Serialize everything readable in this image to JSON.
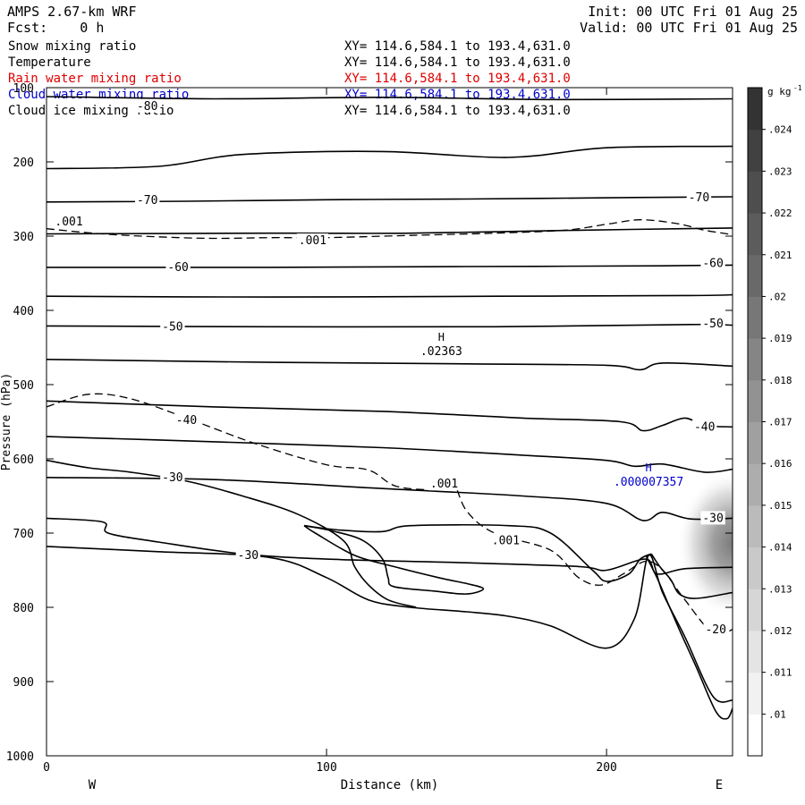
{
  "header": {
    "model": "AMPS 2.67-km WRF",
    "fcst_label": "Fcst:",
    "fcst_value": "0 h",
    "init": "Init: 00 UTC Fri 01 Aug 25",
    "valid": "Valid: 00 UTC Fri 01 Aug 25"
  },
  "fields": [
    {
      "name": "Snow mixing ratio",
      "xy": "XY= 114.6,584.1 to 193.4,631.0",
      "color": "#000000"
    },
    {
      "name": "Temperature",
      "xy": "XY= 114.6,584.1 to 193.4,631.0",
      "color": "#000000"
    },
    {
      "name": "Rain water mixing ratio",
      "xy": "XY= 114.6,584.1 to 193.4,631.0",
      "color": "#e00000"
    },
    {
      "name": "Cloud water mixing ratio",
      "xy": "XY= 114.6,584.1 to 193.4,631.0",
      "color": "#0000cc"
    },
    {
      "name": "Cloud ice mixing ratio",
      "xy": "XY= 114.6,584.1 to 193.4,631.0",
      "color": "#000000"
    }
  ],
  "chart_data": {
    "type": "contour cross-section",
    "xlabel": "Distance (km)",
    "ylabel": "Pressure (hPa)",
    "xlim": [
      0,
      245
    ],
    "ylim": [
      100,
      1000
    ],
    "y_inverted": true,
    "x_ticks": [
      0,
      100,
      200
    ],
    "y_ticks": [
      100,
      200,
      300,
      400,
      500,
      600,
      700,
      800,
      900,
      1000
    ],
    "x_end_labels": {
      "left": "W",
      "right": "E"
    },
    "colorbar": {
      "unit": "g kg",
      "unit_exp": "-1",
      "levels": [
        ".01",
        ".011",
        ".012",
        ".013",
        ".014",
        ".015",
        ".016",
        ".017",
        ".018",
        ".019",
        ".02",
        ".021",
        ".022",
        ".023",
        ".024"
      ]
    },
    "temperature_labels": [
      {
        "text": "-80",
        "x": 36,
        "p": 125
      },
      {
        "text": "-70",
        "x": 36,
        "p": 252
      },
      {
        "text": "-70",
        "x": 233,
        "p": 248
      },
      {
        "text": "-60",
        "x": 47,
        "p": 342
      },
      {
        "text": "-60",
        "x": 238,
        "p": 337
      },
      {
        "text": "-50",
        "x": 45,
        "p": 422
      },
      {
        "text": "-50",
        "x": 238,
        "p": 418
      },
      {
        "text": "-40",
        "x": 50,
        "p": 548
      },
      {
        "text": "-40",
        "x": 235,
        "p": 557
      },
      {
        "text": "-30",
        "x": 45,
        "p": 625
      },
      {
        "text": "-30",
        "x": 72,
        "p": 730
      },
      {
        "text": "-30",
        "x": 238,
        "p": 680
      },
      {
        "text": "-20",
        "x": 239,
        "p": 830
      }
    ],
    "snow_labels": [
      {
        "text": ".001",
        "x": 8,
        "p": 281
      },
      {
        "text": ".001",
        "x": 95,
        "p": 306
      },
      {
        "text": ".001",
        "x": 142,
        "p": 634
      },
      {
        "text": ".001",
        "x": 164,
        "p": 710
      }
    ],
    "maxima": [
      {
        "mark": "H",
        "value": ".02363",
        "x": 141,
        "p": 458,
        "color": "#000000"
      },
      {
        "mark": "H",
        "value": ".000007357",
        "x": 215,
        "p": 634,
        "color": "#0000cc"
      }
    ],
    "temperature_contours": [
      [
        [
          0,
          112
        ],
        [
          60,
          115
        ],
        [
          120,
          113
        ],
        [
          180,
          116
        ],
        [
          245,
          115
        ]
      ],
      [
        [
          0,
          209
        ],
        [
          40,
          206
        ],
        [
          70,
          190
        ],
        [
          120,
          186
        ],
        [
          165,
          194
        ],
        [
          200,
          181
        ],
        [
          245,
          179
        ]
      ],
      [
        [
          0,
          254
        ],
        [
          50,
          253
        ],
        [
          100,
          251
        ],
        [
          150,
          250
        ],
        [
          210,
          248
        ],
        [
          245,
          247
        ]
      ],
      [
        [
          0,
          297
        ],
        [
          80,
          296
        ],
        [
          130,
          296
        ],
        [
          190,
          292
        ],
        [
          245,
          289
        ]
      ],
      [
        [
          0,
          342
        ],
        [
          80,
          342
        ],
        [
          150,
          341
        ],
        [
          220,
          340
        ],
        [
          245,
          339
        ]
      ],
      [
        [
          0,
          381
        ],
        [
          80,
          382
        ],
        [
          160,
          381
        ],
        [
          230,
          380
        ],
        [
          245,
          379
        ]
      ],
      [
        [
          0,
          421
        ],
        [
          80,
          422
        ],
        [
          160,
          422
        ],
        [
          230,
          419
        ],
        [
          245,
          420
        ]
      ],
      [
        [
          0,
          466
        ],
        [
          80,
          470
        ],
        [
          150,
          472
        ],
        [
          200,
          474
        ],
        [
          212,
          480
        ],
        [
          220,
          471
        ],
        [
          245,
          475
        ]
      ],
      [
        [
          0,
          522
        ],
        [
          60,
          530
        ],
        [
          120,
          536
        ],
        [
          170,
          545
        ],
        [
          205,
          550
        ],
        [
          213,
          562
        ],
        [
          220,
          555
        ],
        [
          228,
          545
        ],
        [
          235,
          555
        ],
        [
          245,
          557
        ]
      ],
      [
        [
          0,
          570
        ],
        [
          60,
          577
        ],
        [
          120,
          585
        ],
        [
          170,
          595
        ],
        [
          200,
          602
        ],
        [
          210,
          610
        ],
        [
          220,
          607
        ],
        [
          235,
          618
        ],
        [
          245,
          614
        ]
      ],
      [
        [
          0,
          625
        ],
        [
          60,
          628
        ],
        [
          120,
          640
        ],
        [
          170,
          650
        ],
        [
          200,
          660
        ],
        [
          213,
          683
        ],
        [
          220,
          672
        ],
        [
          230,
          681
        ],
        [
          245,
          680
        ]
      ],
      [
        [
          0,
          680
        ],
        [
          20,
          685
        ],
        [
          22,
          700
        ],
        [
          40,
          712
        ],
        [
          70,
          728
        ],
        [
          100,
          735
        ],
        [
          150,
          740
        ],
        [
          190,
          745
        ],
        [
          200,
          750
        ],
        [
          214,
          735
        ],
        [
          218,
          755
        ],
        [
          228,
          748
        ],
        [
          245,
          746
        ]
      ],
      [
        [
          216,
          728
        ],
        [
          219,
          745
        ],
        [
          223,
          763
        ],
        [
          226,
          782
        ],
        [
          232,
          788
        ],
        [
          245,
          780
        ]
      ],
      [
        [
          0,
          718
        ],
        [
          40,
          725
        ],
        [
          80,
          733
        ],
        [
          100,
          760
        ],
        [
          115,
          790
        ],
        [
          130,
          800
        ],
        [
          150,
          806
        ],
        [
          165,
          812
        ],
        [
          180,
          825
        ],
        [
          200,
          855
        ],
        [
          210,
          815
        ],
        [
          215,
          730
        ],
        [
          220,
          780
        ],
        [
          228,
          840
        ],
        [
          238,
          920
        ],
        [
          245,
          925
        ]
      ]
    ],
    "tongue_contour": [
      [
        92,
        690
      ],
      [
        105,
        696
      ],
      [
        120,
        698
      ],
      [
        130,
        690
      ],
      [
        165,
        690
      ],
      [
        180,
        700
      ],
      [
        195,
        750
      ],
      [
        200,
        765
      ],
      [
        208,
        755
      ],
      [
        212,
        735
      ],
      [
        216,
        728
      ]
    ],
    "closed_contour": [
      [
        92,
        690
      ],
      [
        96,
        700
      ],
      [
        110,
        730
      ],
      [
        124,
        745
      ],
      [
        140,
        760
      ],
      [
        150,
        768
      ],
      [
        156,
        775
      ],
      [
        150,
        782
      ],
      [
        138,
        778
      ],
      [
        124,
        772
      ],
      [
        122,
        760
      ],
      [
        120,
        735
      ],
      [
        113,
        710
      ],
      [
        102,
        697
      ],
      [
        92,
        690
      ]
    ],
    "ridge_left": [
      [
        0,
        602
      ],
      [
        15,
        612
      ],
      [
        30,
        618
      ],
      [
        50,
        630
      ],
      [
        70,
        650
      ],
      [
        90,
        675
      ],
      [
        106,
        710
      ],
      [
        110,
        745
      ],
      [
        115,
        770
      ],
      [
        122,
        790
      ],
      [
        132,
        800
      ]
    ],
    "ridge_right": [
      [
        214,
        730
      ],
      [
        218,
        760
      ],
      [
        222,
        795
      ],
      [
        226,
        830
      ],
      [
        232,
        880
      ],
      [
        239,
        940
      ],
      [
        243,
        950
      ],
      [
        245,
        936
      ]
    ],
    "snow_contours": [
      [
        [
          0,
          290
        ],
        [
          20,
          297
        ],
        [
          40,
          301
        ],
        [
          60,
          303
        ],
        [
          80,
          302
        ],
        [
          100,
          302
        ],
        [
          130,
          299
        ],
        [
          160,
          296
        ],
        [
          185,
          292
        ],
        [
          200,
          284
        ],
        [
          212,
          278
        ],
        [
          225,
          283
        ],
        [
          235,
          292
        ],
        [
          245,
          298
        ]
      ],
      [
        [
          0,
          530
        ],
        [
          15,
          513
        ],
        [
          30,
          519
        ],
        [
          50,
          545
        ],
        [
          75,
          580
        ],
        [
          100,
          608
        ],
        [
          115,
          615
        ],
        [
          125,
          637
        ],
        [
          140,
          641
        ],
        [
          145,
          630
        ],
        [
          150,
          670
        ],
        [
          160,
          700
        ],
        [
          180,
          723
        ],
        [
          190,
          760
        ],
        [
          198,
          770
        ],
        [
          206,
          755
        ],
        [
          214,
          738
        ],
        [
          220,
          750
        ],
        [
          228,
          790
        ],
        [
          238,
          835
        ],
        [
          245,
          830
        ]
      ]
    ],
    "cloud_water_max": {
      "x": 245,
      "p": 714,
      "value": 0.024
    }
  }
}
